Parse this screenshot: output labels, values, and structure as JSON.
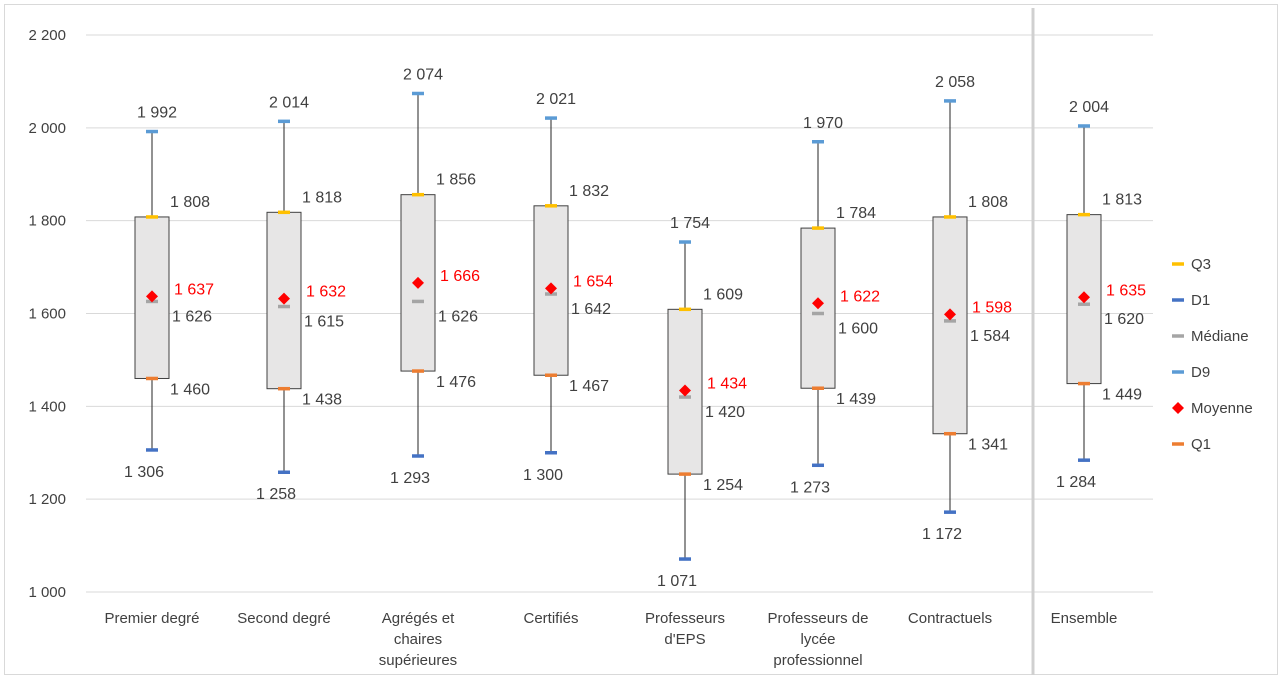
{
  "chart_data": {
    "type": "box",
    "categories": [
      "Premier degré",
      "Second degré",
      "Agrégés et chaires supérieures",
      "Certifiés",
      "Professeurs d'EPS",
      "Professeurs de lycée professionnel",
      "Contractuels",
      "Ensemble"
    ],
    "category_lines": [
      [
        "Premier degré"
      ],
      [
        "Second degré"
      ],
      [
        "Agrégés et",
        "chaires",
        "supérieures"
      ],
      [
        "Certifiés"
      ],
      [
        "Professeurs",
        "d'EPS"
      ],
      [
        "Professeurs de",
        "lycée",
        "professionnel"
      ],
      [
        "Contractuels"
      ],
      [
        "Ensemble"
      ]
    ],
    "series": [
      {
        "name": "Q3",
        "key": "q3",
        "color": "#ffc000",
        "marker": "dash",
        "values": [
          1808,
          1818,
          1856,
          1832,
          1609,
          1784,
          1808,
          1813
        ],
        "labels": [
          "1 808",
          "1 818",
          "1 856",
          "1 832",
          "1 609",
          "1 784",
          "1 808",
          "1 813"
        ]
      },
      {
        "name": "D1",
        "key": "d1",
        "color": "#4472c4",
        "marker": "dash",
        "values": [
          1306,
          1258,
          1293,
          1300,
          1071,
          1273,
          1172,
          1284
        ],
        "labels": [
          "1 306",
          "1 258",
          "1 293",
          "1 300",
          "1 071",
          "1 273",
          "1 172",
          "1 284"
        ]
      },
      {
        "name": "Médiane",
        "key": "median",
        "color": "#a5a5a5",
        "marker": "dash",
        "values": [
          1626,
          1615,
          1626,
          1642,
          1420,
          1600,
          1584,
          1620
        ],
        "labels": [
          "1 626",
          "1 615",
          "1 626",
          "1 642",
          "1 420",
          "1 600",
          "1 584",
          "1 620"
        ]
      },
      {
        "name": "D9",
        "key": "d9",
        "color": "#5b9bd5",
        "marker": "dash",
        "values": [
          1992,
          2014,
          2074,
          2021,
          1754,
          1970,
          2058,
          2004
        ],
        "labels": [
          "1 992",
          "2 014",
          "2 074",
          "2 021",
          "1 754",
          "1 970",
          "2 058",
          "2 004"
        ]
      },
      {
        "name": "Moyenne",
        "key": "mean",
        "color": "#ff0000",
        "marker": "diamond",
        "values": [
          1637,
          1632,
          1666,
          1654,
          1434,
          1622,
          1598,
          1635
        ],
        "labels": [
          "1 637",
          "1 632",
          "1 666",
          "1 654",
          "1 434",
          "1 622",
          "1 598",
          "1 635"
        ]
      },
      {
        "name": "Q1",
        "key": "q1",
        "color": "#ed7d31",
        "marker": "dash",
        "values": [
          1460,
          1438,
          1476,
          1467,
          1254,
          1439,
          1341,
          1449
        ],
        "labels": [
          "1 460",
          "1 438",
          "1 476",
          "1 467",
          "1 254",
          "1 439",
          "1 341",
          "1 449"
        ]
      }
    ],
    "ylim": [
      1000,
      2200
    ],
    "yticks": [
      1000,
      1200,
      1400,
      1600,
      1800,
      2000,
      2200
    ],
    "ytick_labels": [
      "1 000",
      "1 200",
      "1 400",
      "1 600",
      "1 800",
      "2 000",
      "2 200"
    ],
    "grid": true,
    "legend_position": "right",
    "separator_before_category": "Ensemble",
    "colors": {
      "box_fill": "#e7e6e6",
      "box_stroke": "#404040",
      "whisker": "#262626",
      "grid": "#d9d9d9",
      "text": "#404040",
      "mean_label": "#ff0000",
      "separator": "#d0d0d0"
    }
  }
}
